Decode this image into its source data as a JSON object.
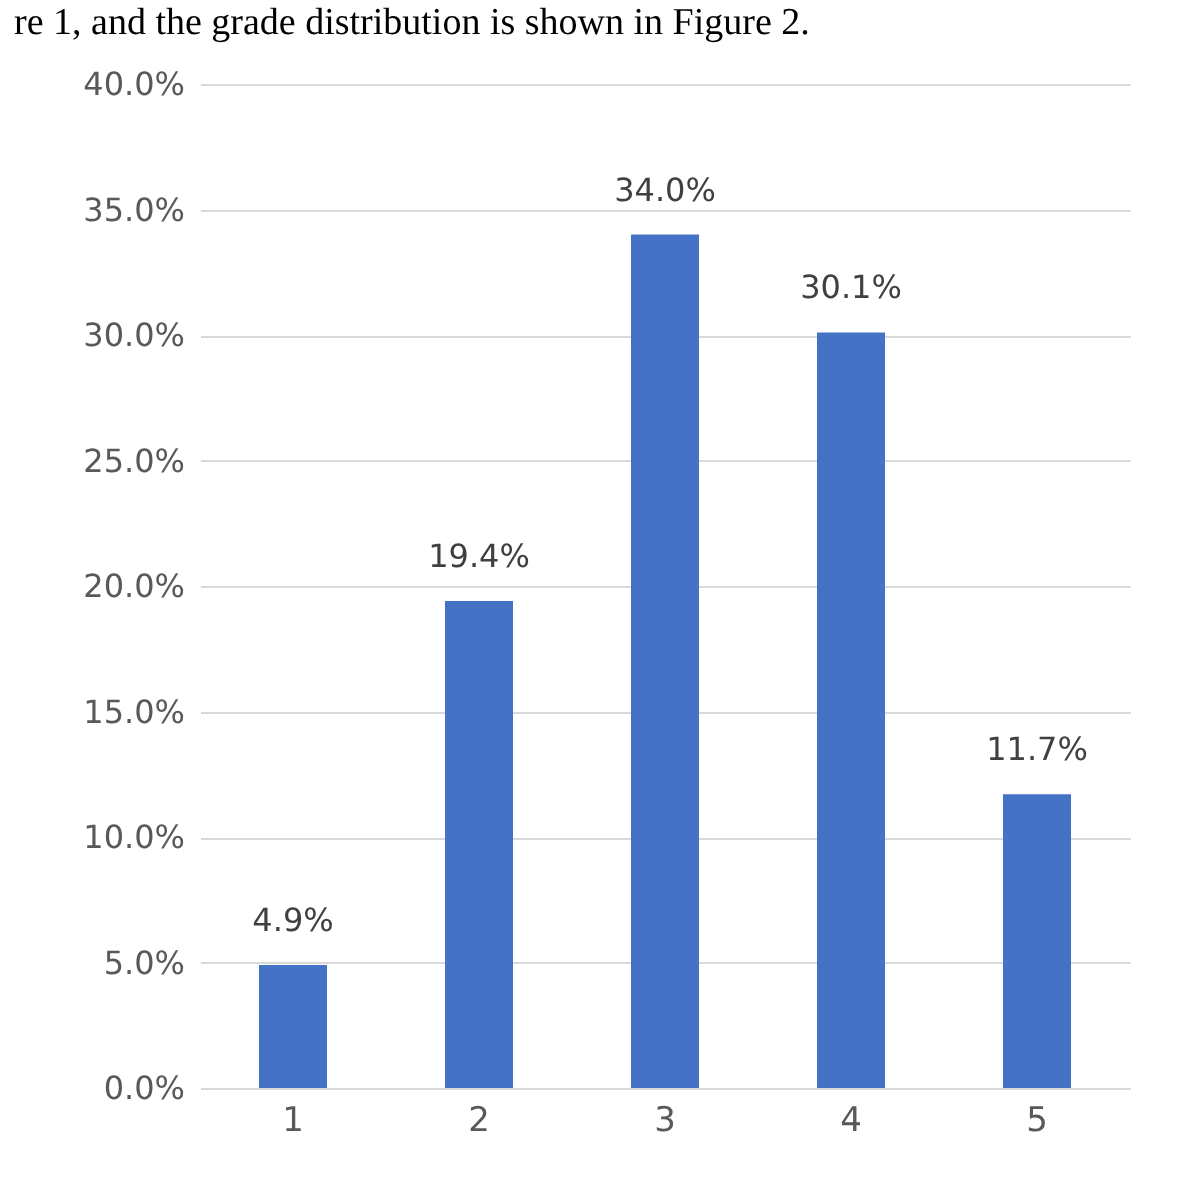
{
  "chart_data": {
    "type": "bar",
    "categories": [
      "1",
      "2",
      "3",
      "4",
      "5"
    ],
    "values": [
      4.9,
      19.4,
      34.0,
      30.1,
      11.7
    ],
    "value_labels": [
      "4.9%",
      "19.4%",
      "34.0%",
      "30.1%",
      "11.7%"
    ],
    "color": "#4472c4",
    "ylim": [
      0,
      40
    ],
    "yticks": [
      {
        "value": 0,
        "label": "0.0%"
      },
      {
        "value": 5,
        "label": "5.0%"
      },
      {
        "value": 10,
        "label": "10.0%"
      },
      {
        "value": 15,
        "label": "15.0%"
      },
      {
        "value": 20,
        "label": "20.0%"
      },
      {
        "value": 25,
        "label": "25.0%"
      },
      {
        "value": 30,
        "label": "30.0%"
      },
      {
        "value": 35,
        "label": "35.0%"
      },
      {
        "value": 40,
        "label": "40.0%"
      }
    ],
    "grid": "y",
    "annotations": [
      "re 1, and the grade distribution is shown in Figure 2."
    ]
  }
}
